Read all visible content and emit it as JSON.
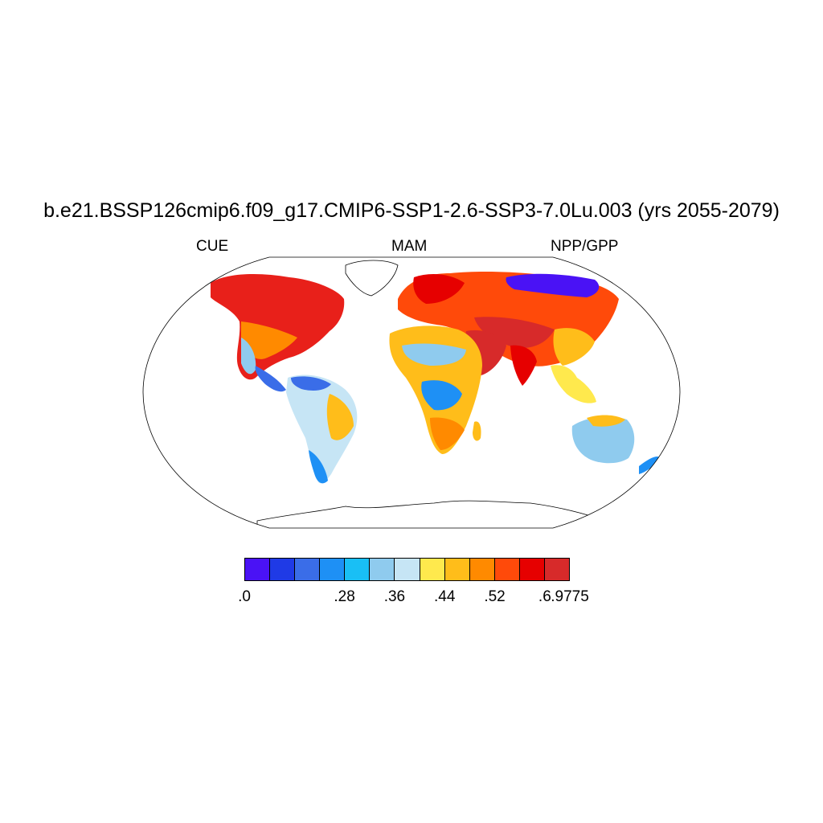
{
  "title": "b.e21.BSSP126cmip6.f09_g17.CMIP6-SSP1-2.6-SSP3-7.0Lu.003 (yrs 2055-2079)",
  "subtitle_left": "CUE",
  "subtitle_center": "MAM",
  "subtitle_right": "NPP/GPP",
  "colorbar": {
    "colors": [
      "#4a12f5",
      "#1f3ae6",
      "#3a6de8",
      "#1e90f5",
      "#19bff5",
      "#8fcbee",
      "#c6e5f5",
      "#ffe94d",
      "#ffbd1a",
      "#ff8a00",
      "#ff4a0a",
      "#e60000",
      "#d72a2a"
    ],
    "labels": [
      ".0",
      ".28",
      ".36",
      ".44",
      ".52",
      ".6",
      ".9775"
    ],
    "label_boundaries": [
      0,
      2,
      3,
      4,
      5,
      6,
      7
    ]
  },
  "map": {
    "projection": "Robinson",
    "regions": [
      {
        "name": "north-america-north",
        "value_class": "high",
        "color": "#e8201a"
      },
      {
        "name": "eurasia-north",
        "value_class": "high",
        "color": "#ff4a0a"
      },
      {
        "name": "siberia-northeast",
        "value_class": "low",
        "color": "#4a12f5"
      },
      {
        "name": "south-america",
        "value_class": "mid",
        "color": "#c6e5f5"
      },
      {
        "name": "africa",
        "value_class": "mixed",
        "color": "#ffbd1a"
      },
      {
        "name": "australia",
        "value_class": "mid",
        "color": "#8fcbee"
      },
      {
        "name": "middle-east",
        "value_class": "high",
        "color": "#d72a2a"
      }
    ]
  }
}
